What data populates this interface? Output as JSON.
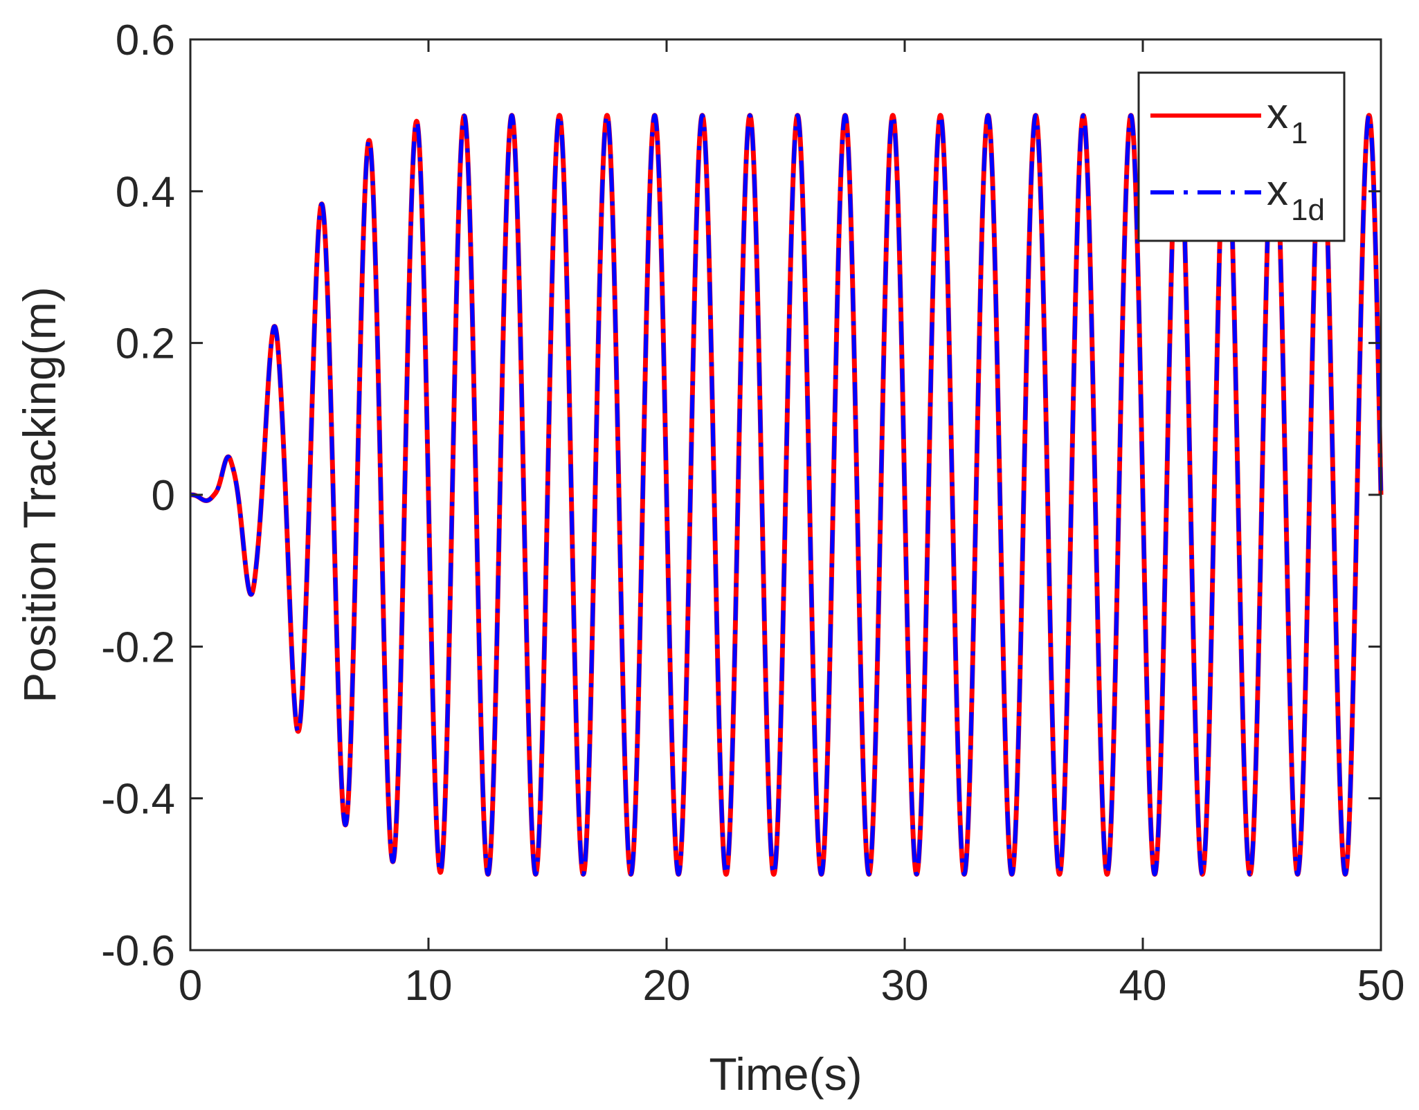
{
  "chart_data": {
    "type": "line",
    "title": "",
    "xlabel": "Time(s)",
    "ylabel": "Position Tracking(m)",
    "xlim": [
      0,
      50
    ],
    "ylim": [
      -0.6,
      0.6
    ],
    "x_ticks": [
      0,
      10,
      20,
      30,
      40,
      50
    ],
    "x_tick_labels": [
      "0",
      "10",
      "20",
      "30",
      "40",
      "50"
    ],
    "y_ticks": [
      0.6,
      0.4,
      0.2,
      0,
      -0.2,
      -0.4,
      -0.6
    ],
    "y_tick_labels": [
      "0.6",
      "0.4",
      "0.2",
      "0",
      "-0.2",
      "-0.4",
      "-0.6"
    ],
    "grid": false,
    "legend_position": "top-right",
    "signal": {
      "period": 2.0,
      "final_amplitude": 0.5,
      "envelope_t": [
        0,
        1,
        1.7,
        2.7,
        3.7,
        4.7,
        5.7,
        6.7,
        7.7,
        8.7,
        9.7,
        10.7,
        12,
        50
      ],
      "envelope_amp": [
        0,
        0.012,
        0.055,
        0.138,
        0.23,
        0.32,
        0.39,
        0.44,
        0.47,
        0.485,
        0.493,
        0.498,
        0.5,
        0.5
      ]
    },
    "series": [
      {
        "name": "x",
        "subscript": "1",
        "color": "#ff0000",
        "style": "solid"
      },
      {
        "name": "x",
        "subscript": "1d",
        "color": "#0000ff",
        "style": "dash-dot"
      }
    ]
  }
}
